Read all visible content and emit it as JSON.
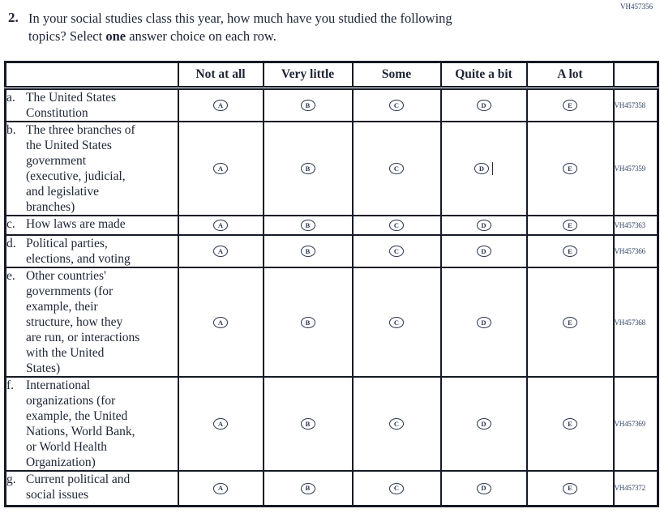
{
  "page_code": "VH457356",
  "question": {
    "number": "2.",
    "line1": "In your social studies class this year, how much have you studied the following",
    "line2_pre": "topics? Select ",
    "line2_bold": "one",
    "line2_post": " answer choice on each row."
  },
  "table": {
    "columns": [
      "",
      "Not at all",
      "Very little",
      "Some",
      "Quite a bit",
      "A lot",
      ""
    ],
    "options": [
      "A",
      "B",
      "C",
      "D",
      "E"
    ],
    "rows": [
      {
        "letter": "a.",
        "topic": "The United States\nConstitution",
        "code": "VH457358"
      },
      {
        "letter": "b.",
        "topic": "The three branches of\nthe United States\ngovernment\n(executive, judicial,\nand legislative\nbranches)",
        "code": "VH457359",
        "cursor_after": "D"
      },
      {
        "letter": "c.",
        "topic": "How laws are made",
        "code": "VH457363"
      },
      {
        "letter": "d.",
        "topic": "Political parties,\nelections, and voting",
        "code": "VH457366"
      },
      {
        "letter": "e.",
        "topic": "Other countries'\ngovernments (for\nexample, their\nstructure, how they\nare run, or interactions\nwith the United\nStates)",
        "code": "VH457368"
      },
      {
        "letter": "f.",
        "topic": "International\norganizations (for\nexample, the United\nNations, World Bank,\nor World Health\nOrganization)",
        "code": "VH457369"
      },
      {
        "letter": "g.",
        "topic": "Current political and\nsocial issues",
        "code": "VH457372"
      }
    ]
  },
  "colors": {
    "ink": "#1d2434",
    "code_text": "#2e4263",
    "border": "#151a25"
  }
}
